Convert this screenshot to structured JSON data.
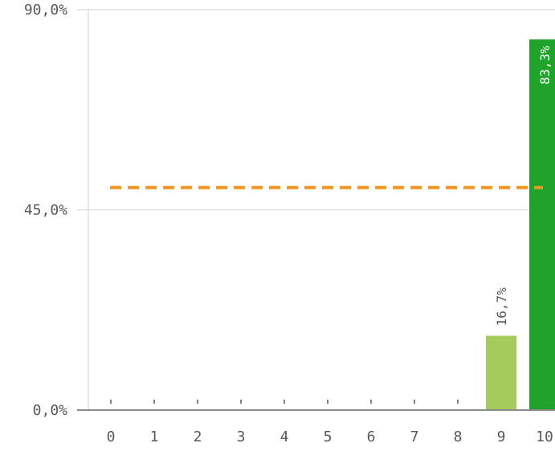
{
  "chart_data": {
    "type": "bar",
    "categories": [
      "0",
      "1",
      "2",
      "3",
      "4",
      "5",
      "6",
      "7",
      "8",
      "9",
      "10"
    ],
    "values": [
      0,
      0,
      0,
      0,
      0,
      0,
      0,
      0,
      0,
      16.7,
      83.3
    ],
    "data_labels": [
      "",
      "",
      "",
      "",
      "",
      "",
      "",
      "",
      "",
      "16,7%",
      "83,3%"
    ],
    "y_ticks": [
      {
        "value": 0,
        "label": "0,0%"
      },
      {
        "value": 45,
        "label": "45,0%"
      },
      {
        "value": 90,
        "label": "90,0%"
      }
    ],
    "ylim": [
      0,
      90
    ],
    "reference_line": {
      "value": 50,
      "style": "dashed",
      "color": "#f7941d"
    },
    "bar_colors": {
      "9": "#a3cc5a",
      "10": "#1fa32a"
    },
    "data_label_colors": {
      "9": "#595959",
      "10": "#ffffff"
    },
    "grid": true,
    "title": "",
    "xlabel": "",
    "ylabel": ""
  }
}
